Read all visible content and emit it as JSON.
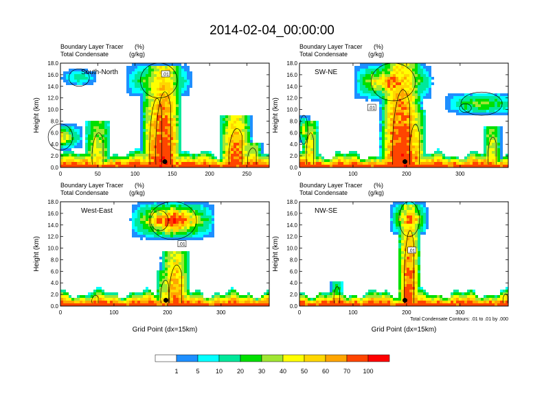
{
  "title": "2014-02-04_00:00:00",
  "colors": {
    "levels": [
      "#ffffff",
      "#1e8fff",
      "#02ffff",
      "#00e89a",
      "#00e000",
      "#a0e632",
      "#ffff00",
      "#ffd700",
      "#ffa500",
      "#ff4500",
      "#ff0000"
    ],
    "contour": "#000000",
    "marker": "#000000"
  },
  "chart_data": [
    {
      "type": "heatmap",
      "panel_label": "South-North",
      "subtitle1": "Boundary Layer Tracer",
      "units1": "(%)",
      "subtitle2": "Total Condensate",
      "units2": "(g/kg)",
      "ylabel": "Height (km)",
      "xlabel": "",
      "xlim": [
        0,
        280
      ],
      "xticks": [
        "0",
        "50",
        "100",
        "150",
        "200",
        "250"
      ],
      "ylim": [
        0,
        18
      ],
      "yticks": [
        "0.0",
        "2.0",
        "4.0",
        "6.0",
        "8.0",
        "10.0",
        "12.0",
        "14.0",
        "16.0",
        "18.0"
      ],
      "contour_label": ".01",
      "contour_label_pos": [
        141,
        16.1
      ],
      "marker_x": 140,
      "marker_y": 1.0,
      "plumes": [
        {
          "x": 138,
          "width": 25,
          "top": 17.5,
          "peak": 95
        },
        {
          "x": 128,
          "width": 20,
          "top": 16.0,
          "peak": 75
        },
        {
          "x": 50,
          "width": 18,
          "top": 8.0,
          "peak": 55
        },
        {
          "x": 235,
          "width": 22,
          "top": 9.0,
          "peak": 85
        },
        {
          "x": 257,
          "width": 14,
          "top": 4.5,
          "peak": 60
        }
      ],
      "anvils": [
        {
          "x": 0,
          "width": 30,
          "top": 7.5,
          "bottom": 3.0,
          "peak": 40
        },
        {
          "x": 132,
          "width": 45,
          "top": 18.0,
          "bottom": 12.0,
          "peak": 35
        },
        {
          "x": 25,
          "width": 25,
          "top": 17.0,
          "bottom": 14.0,
          "peak": 12
        }
      ]
    },
    {
      "type": "heatmap",
      "panel_label": "SW-NE",
      "subtitle1": "Boundary Layer Tracer",
      "units1": "(%)",
      "subtitle2": "Total Condensate",
      "units2": "(g/kg)",
      "ylabel": "Height (km)",
      "xlabel": "",
      "xlim": [
        0,
        390
      ],
      "xticks": [
        "0",
        "100",
        "200",
        "300"
      ],
      "ylim": [
        0,
        18
      ],
      "yticks": [
        "0.0",
        "2.0",
        "4.0",
        "6.0",
        "8.0",
        "10.0",
        "12.0",
        "14.0",
        "16.0",
        "18.0"
      ],
      "contour_label": ".01",
      "contour_label_pos": [
        135,
        10.3
      ],
      "marker_x": 197,
      "marker_y": 1.0,
      "plumes": [
        {
          "x": 190,
          "width": 40,
          "top": 18.0,
          "peak": 95
        },
        {
          "x": 215,
          "width": 22,
          "top": 10.0,
          "peak": 70
        },
        {
          "x": 20,
          "width": 16,
          "top": 8.0,
          "peak": 60
        },
        {
          "x": 360,
          "width": 18,
          "top": 7.0,
          "peak": 55
        }
      ],
      "anvils": [
        {
          "x": 175,
          "width": 75,
          "top": 18.0,
          "bottom": 11.5,
          "peak": 55
        },
        {
          "x": 340,
          "width": 70,
          "top": 13.0,
          "bottom": 9.0,
          "peak": 25
        },
        {
          "x": 310,
          "width": 20,
          "top": 11.0,
          "bottom": 9.5,
          "peak": 12
        },
        {
          "x": 8,
          "width": 14,
          "top": 9.0,
          "bottom": 4.0,
          "peak": 30
        }
      ]
    },
    {
      "type": "heatmap",
      "panel_label": "West-East",
      "subtitle1": "Boundary Layer Tracer",
      "units1": "(%)",
      "subtitle2": "Total Condensate",
      "units2": "(g/kg)",
      "ylabel": "Height (km)",
      "xlabel": "Grid Point (dx=15km)",
      "xlim": [
        0,
        390
      ],
      "xticks": [
        "0",
        "100",
        "200",
        "300"
      ],
      "ylim": [
        0,
        18
      ],
      "yticks": [
        "0.0",
        "2.0",
        "4.0",
        "6.0",
        "8.0",
        "10.0",
        "12.0",
        "14.0",
        "16.0",
        "18.0"
      ],
      "contour_label": ".01",
      "contour_label_pos": [
        227,
        10.7
      ],
      "marker_x": 197,
      "marker_y": 1.0,
      "plumes": [
        {
          "x": 215,
          "width": 28,
          "top": 9.5,
          "peak": 80
        },
        {
          "x": 195,
          "width": 18,
          "top": 6.0,
          "peak": 55
        },
        {
          "x": 65,
          "width": 14,
          "top": 2.5,
          "peak": 30
        }
      ],
      "anvils": [
        {
          "x": 210,
          "width": 80,
          "top": 18.0,
          "bottom": 11.5,
          "peak": 65
        },
        {
          "x": 185,
          "width": 30,
          "top": 16.5,
          "bottom": 13.0,
          "peak": 70
        }
      ]
    },
    {
      "type": "heatmap",
      "panel_label": "NW-SE",
      "subtitle1": "Boundary Layer Tracer",
      "units1": "(%)",
      "subtitle2": "Total Condensate",
      "units2": "(g/kg)",
      "ylabel": "Height (km)",
      "xlabel": "Grid Point (dx=15km)",
      "xlim": [
        0,
        390
      ],
      "xticks": [
        "0",
        "100",
        "200",
        "300"
      ],
      "ylim": [
        0,
        18
      ],
      "yticks": [
        "0.0",
        "2.0",
        "4.0",
        "6.0",
        "8.0",
        "10.0",
        "12.0",
        "14.0",
        "16.0",
        "18.0"
      ],
      "contour_label": ".01",
      "contour_label_pos": [
        210,
        9.6
      ],
      "marker_x": 197,
      "marker_y": 1.0,
      "plumes": [
        {
          "x": 205,
          "width": 22,
          "top": 17.5,
          "peak": 85
        },
        {
          "x": 70,
          "width": 12,
          "top": 4.5,
          "peak": 35
        },
        {
          "x": 385,
          "width": 10,
          "top": 2.8,
          "peak": 40
        }
      ],
      "anvils": [
        {
          "x": 205,
          "width": 35,
          "top": 18.0,
          "bottom": 12.0,
          "peak": 55
        }
      ],
      "footnote": "Total Condensate Contours: .01 to .01 by .000"
    }
  ],
  "colorbar": {
    "labels": [
      "1",
      "5",
      "10",
      "20",
      "30",
      "40",
      "50",
      "60",
      "70",
      "100"
    ]
  }
}
